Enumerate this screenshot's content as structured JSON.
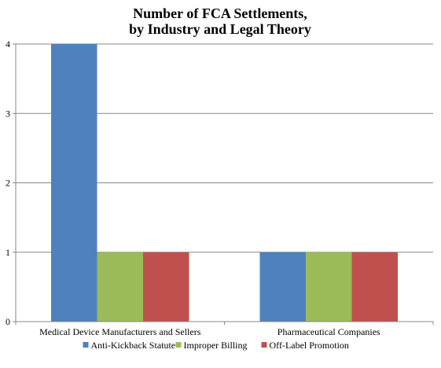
{
  "chart_data": {
    "type": "bar",
    "title_lines": [
      "Number of FCA Settlements,",
      "by Industry and Legal Theory"
    ],
    "title": "Number of FCA Settlements, by Industry and Legal Theory",
    "xlabel": "",
    "ylabel": "",
    "categories": [
      "Medical Device Manufacturers and Sellers",
      "Pharmaceutical Companies"
    ],
    "series": [
      {
        "name": "Anti-Kickback Statute",
        "values": [
          4,
          1
        ],
        "color": "#4F81BD"
      },
      {
        "name": "Improper Billing",
        "values": [
          1,
          1
        ],
        "color": "#9BBB59"
      },
      {
        "name": "Off-Label Promotion",
        "values": [
          1,
          1
        ],
        "color": "#C0504D"
      }
    ],
    "ylim": [
      0,
      4
    ],
    "yticks": [
      0,
      1,
      2,
      3,
      4
    ],
    "grid": true,
    "legend_position": "bottom"
  }
}
